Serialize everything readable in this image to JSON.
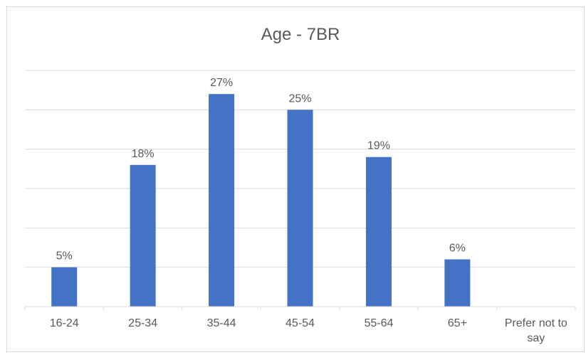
{
  "chart_data": {
    "type": "bar",
    "title": "Age - 7BR",
    "categories": [
      "16-24",
      "25-34",
      "35-44",
      "45-54",
      "55-64",
      "65+",
      "Prefer not to say"
    ],
    "values": [
      5,
      18,
      27,
      25,
      19,
      6,
      0
    ],
    "data_labels": [
      "5%",
      "18%",
      "27%",
      "25%",
      "19%",
      "6%",
      ""
    ],
    "ylim": [
      0,
      30
    ],
    "y_tick_step": 5,
    "unit": "%",
    "xlabel": "",
    "ylabel": "",
    "grid": true,
    "legend": "none",
    "bar_color": "#4472c4",
    "grid_color": "#d9d9d9",
    "text_color": "#595959"
  }
}
